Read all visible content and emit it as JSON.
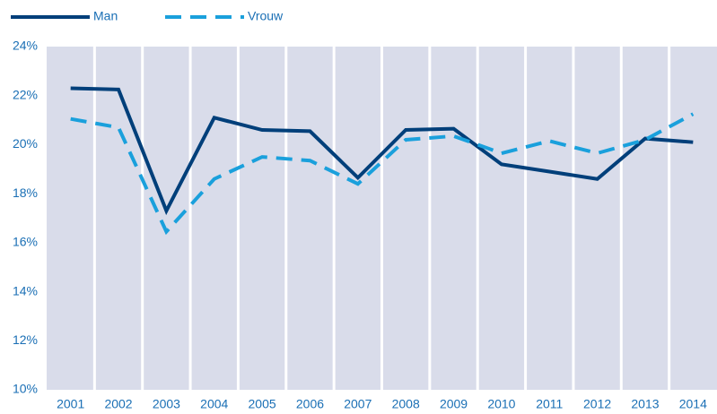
{
  "chart_data": {
    "type": "line",
    "categories": [
      "2001",
      "2002",
      "2003",
      "2004",
      "2005",
      "2006",
      "2007",
      "2008",
      "2009",
      "2010",
      "2011",
      "2012",
      "2013",
      "2014"
    ],
    "series": [
      {
        "name": "Man",
        "color": "#003f7a",
        "dash": false,
        "values": [
          22.3,
          22.25,
          17.3,
          21.1,
          20.6,
          20.55,
          18.65,
          20.6,
          20.65,
          19.2,
          18.9,
          18.6,
          20.25,
          20.1
        ]
      },
      {
        "name": "Vrouw",
        "color": "#1aa0dc",
        "dash": true,
        "values": [
          21.05,
          20.7,
          16.45,
          18.6,
          19.5,
          19.35,
          18.4,
          20.2,
          20.35,
          19.65,
          20.15,
          19.65,
          20.2,
          21.25
        ]
      }
    ],
    "ylim": [
      10,
      24
    ],
    "yticks": [
      {
        "value": 10,
        "label": "10%"
      },
      {
        "value": 12,
        "label": "12%"
      },
      {
        "value": 14,
        "label": "14%"
      },
      {
        "value": 16,
        "label": "16%"
      },
      {
        "value": 18,
        "label": "18%"
      },
      {
        "value": 20,
        "label": "20%"
      },
      {
        "value": 22,
        "label": "22%"
      },
      {
        "value": 24,
        "label": "24%"
      }
    ],
    "legend": "top-left"
  }
}
